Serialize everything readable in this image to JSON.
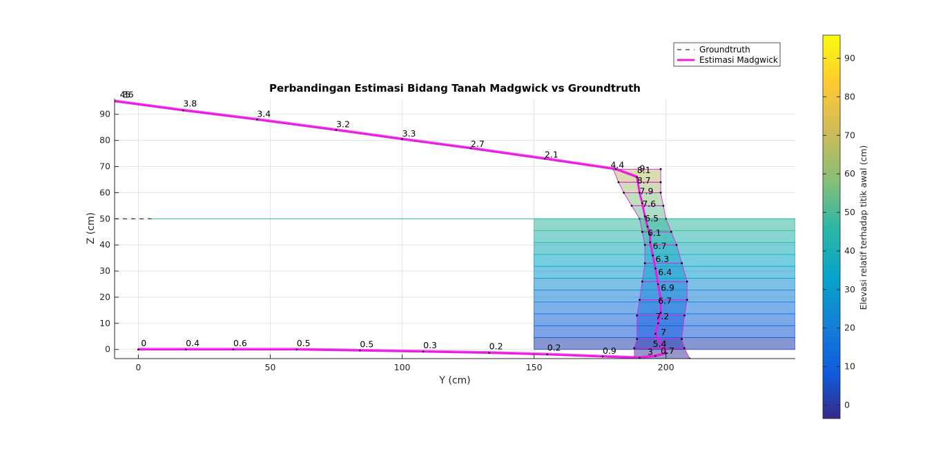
{
  "chart_data": {
    "type": "line",
    "title": "Perbandingan Estimasi Bidang Tanah Madgwick vs Groundtruth",
    "xlabel": "Y (cm)",
    "ylabel": "Z (cm)",
    "xlim": [
      -9,
      249
    ],
    "ylim": [
      -3.5,
      96
    ],
    "xticks": [
      0,
      50,
      100,
      150,
      200
    ],
    "yticks": [
      0,
      10,
      20,
      30,
      40,
      50,
      60,
      70,
      80,
      90
    ],
    "grid": true,
    "legend_position": "top-right",
    "legend": [
      "Groundtruth",
      "Estimasi Madgwick"
    ],
    "colors": {
      "estimate": "#ea1be4",
      "groundtruth": "#000000",
      "grid": "#dedede"
    },
    "colorbar": {
      "label": "Elevasi relatif terhadap titik awal (cm)",
      "range": [
        -3.5,
        96
      ],
      "ticks": [
        0,
        10,
        20,
        30,
        40,
        50,
        60,
        70,
        80,
        90
      ],
      "colormap": "parula"
    },
    "series": [
      {
        "name": "Groundtruth",
        "style": "dashed",
        "segments": [
          [
            [
              -9,
              50
            ],
            [
              5,
              50
            ]
          ]
        ]
      },
      {
        "name": "Estimasi Madgwick",
        "style": "solid",
        "x": [
          0,
          18,
          36,
          60,
          84,
          108,
          133,
          155,
          176,
          190,
          196,
          200,
          196,
          197,
          198,
          198,
          197,
          196,
          195,
          194,
          194,
          193,
          192,
          191,
          190,
          189,
          181,
          154,
          126,
          100,
          75,
          45,
          17,
          -9
        ],
        "y": [
          0,
          0,
          0,
          0,
          -0.4,
          -0.8,
          -1.3,
          -1.9,
          -2.7,
          -3.2,
          -2.5,
          -1.5,
          6,
          10,
          14,
          19,
          25,
          31,
          36,
          41,
          44,
          47,
          51,
          56,
          60,
          66,
          69,
          73,
          77,
          80.5,
          84,
          88,
          91.5,
          95
        ]
      }
    ],
    "ground_fill": {
      "y_range": [
        150,
        249
      ],
      "z_range": [
        0,
        50
      ],
      "bands": 11
    },
    "step_polygons": {
      "left_edge_y": [
        188,
        188,
        189,
        189,
        190,
        191,
        192,
        192,
        191,
        190,
        187,
        184,
        182,
        180
      ],
      "right_edge_y": [
        209,
        207,
        206,
        207,
        208,
        208,
        206,
        204,
        202,
        200,
        199,
        198,
        198,
        198
      ],
      "z_levels": [
        -3.5,
        0.5,
        4,
        13,
        19,
        26,
        33,
        40,
        45,
        50,
        55,
        60,
        64,
        69
      ]
    },
    "annotations": [
      {
        "text": "0",
        "x": 1,
        "y": 1.2
      },
      {
        "text": "0.4",
        "x": 18,
        "y": 1.2
      },
      {
        "text": "0.6",
        "x": 36,
        "y": 1.2
      },
      {
        "text": "0.5",
        "x": 60,
        "y": 1.2
      },
      {
        "text": "0.5",
        "x": 84,
        "y": 0.9
      },
      {
        "text": "0.3",
        "x": 108,
        "y": 0.5
      },
      {
        "text": "0.2",
        "x": 133,
        "y": 0.1
      },
      {
        "text": "0.2",
        "x": 155,
        "y": -0.5
      },
      {
        "text": "0.9",
        "x": 176,
        "y": -1.6
      },
      {
        "text": "3",
        "x": 193,
        "y": -2.1
      },
      {
        "text": "0.7",
        "x": 198,
        "y": -1.7
      },
      {
        "text": "5.4",
        "x": 195,
        "y": 1.0
      },
      {
        "text": "7",
        "x": 198,
        "y": 5.5
      },
      {
        "text": "7.2",
        "x": 196,
        "y": 11.5
      },
      {
        "text": "6.7",
        "x": 197,
        "y": 17.5
      },
      {
        "text": "6.9",
        "x": 198,
        "y": 22.5
      },
      {
        "text": "6.4",
        "x": 197,
        "y": 28.5
      },
      {
        "text": "6.3",
        "x": 196,
        "y": 33.5
      },
      {
        "text": "6.7",
        "x": 195,
        "y": 38.5
      },
      {
        "text": "6.1",
        "x": 193,
        "y": 43.5
      },
      {
        "text": "6.5",
        "x": 192,
        "y": 49
      },
      {
        "text": "7.6",
        "x": 191,
        "y": 54.5
      },
      {
        "text": "7.9",
        "x": 190,
        "y": 59.5
      },
      {
        "text": "8.7",
        "x": 189,
        "y": 63.5
      },
      {
        "text": "8.1",
        "x": 189,
        "y": 67.5
      },
      {
        "text": "9",
        "x": 190,
        "y": 68.2
      },
      {
        "text": "4.4",
        "x": 179,
        "y": 69.5
      },
      {
        "text": "2.1",
        "x": 154,
        "y": 73.5
      },
      {
        "text": "2.7",
        "x": 126,
        "y": 77.5
      },
      {
        "text": "3.3",
        "x": 100,
        "y": 81.5
      },
      {
        "text": "3.2",
        "x": 75,
        "y": 85
      },
      {
        "text": "3.4",
        "x": 45,
        "y": 89
      },
      {
        "text": "3.8",
        "x": 17,
        "y": 93
      },
      {
        "text": "4.6",
        "x": -7,
        "y": 96.4
      },
      {
        "text": "3",
        "x": -6,
        "y": 96.4
      },
      {
        "text": "5",
        "x": -5,
        "y": 96.4
      }
    ]
  }
}
